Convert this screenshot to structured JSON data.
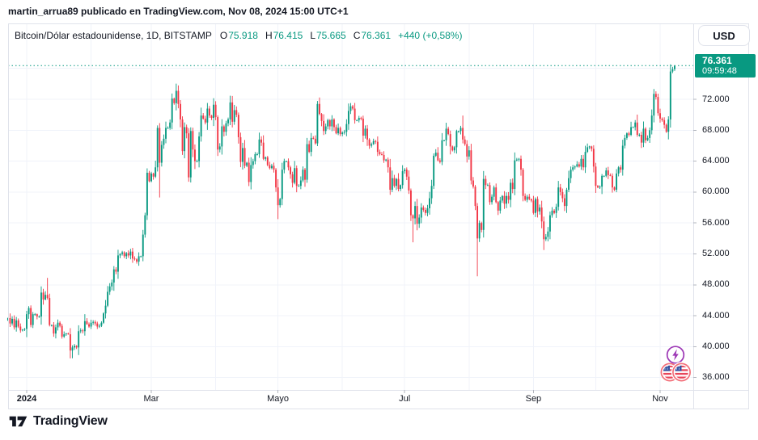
{
  "attribution": {
    "text": "martin_arrua89 publicado en TradingView.com, Nov 08, 2024 15:00 UTC+1"
  },
  "header": {
    "title": "Bitcoin/Dólar estadounidense, 1D, BITSTAMP",
    "ohlc": [
      {
        "label": "O",
        "value": "75.918"
      },
      {
        "label": "H",
        "value": "76.415"
      },
      {
        "label": "L",
        "value": "75.665"
      },
      {
        "label": "C",
        "value": "76.361"
      }
    ],
    "change": "+440 (+0,58%)",
    "currency_button": "USD"
  },
  "price_scale": {
    "last_price": "76.361",
    "countdown": "09:59:48"
  },
  "footer": {
    "brand": "TradingView"
  },
  "reactions": {
    "boost": "lightning-bolt",
    "flags": "us-flag-pair"
  },
  "chart_data": {
    "type": "candlestick",
    "symbol": "Bitcoin/Dólar estadounidense",
    "interval": "1D",
    "exchange": "BITSTAMP",
    "unit": "thousands of USD",
    "date_range": {
      "start": "2023-12-23",
      "end": "2024-11-08"
    },
    "ylim_k": [
      34.4,
      81.82
    ],
    "y_axis": {
      "grid_extra_k": [
        76
      ],
      "ticks": [
        {
          "k": 72,
          "label": "72.000"
        },
        {
          "k": 68,
          "label": "68.000"
        },
        {
          "k": 64,
          "label": "64.000"
        },
        {
          "k": 60,
          "label": "60.000"
        },
        {
          "k": 56,
          "label": "56.000"
        },
        {
          "k": 52,
          "label": "52.000"
        },
        {
          "k": 48,
          "label": "48.000"
        },
        {
          "k": 44,
          "label": "44.000"
        },
        {
          "k": 40,
          "label": "40.000"
        },
        {
          "k": 36,
          "label": "36.000"
        }
      ]
    },
    "x_axis": {
      "labels": [
        {
          "day": 9,
          "text": "2024",
          "bold": true
        },
        {
          "day": 69,
          "text": "Mar"
        },
        {
          "day": 130,
          "text": "Mayo"
        },
        {
          "day": 191,
          "text": "Jul"
        },
        {
          "day": 253,
          "text": "Sep"
        },
        {
          "day": 314,
          "text": "Nov"
        }
      ],
      "month_grid_days": [
        9,
        40,
        69,
        100,
        130,
        161,
        191,
        222,
        253,
        283,
        314
      ]
    },
    "first_open_k": 43.4,
    "closes_k": [
      43.7,
      43.0,
      43.6,
      42.5,
      43.4,
      42.6,
      42.1,
      42.2,
      42.3,
      44.2,
      45.0,
      42.8,
      44.2,
      44.2,
      43.9,
      43.9,
      47.0,
      46.1,
      46.7,
      46.3,
      42.8,
      42.8,
      41.7,
      42.5,
      43.1,
      42.7,
      41.3,
      41.6,
      41.7,
      41.6,
      39.5,
      39.9,
      40.1,
      39.9,
      42.0,
      42.1,
      42.0,
      43.3,
      42.9,
      42.6,
      43.1,
      43.2,
      43.0,
      42.6,
      42.7,
      43.1,
      44.3,
      45.3,
      47.1,
      47.8,
      48.3,
      50.0,
      49.7,
      51.8,
      52.0,
      52.2,
      51.7,
      52.1,
      51.8,
      52.3,
      51.4,
      51.3,
      51.0,
      51.7,
      51.7,
      54.5,
      57.0,
      62.5,
      61.4,
      62.4,
      62.0,
      63.2,
      68.3,
      63.8,
      66.1,
      66.9,
      68.3,
      68.3,
      69.0,
      72.1,
      71.5,
      73.1,
      71.4,
      69.4,
      65.3,
      68.4,
      67.6,
      61.9,
      67.9,
      65.5,
      64.0,
      64.0,
      67.2,
      69.9,
      69.5,
      69.0,
      70.8,
      69.9,
      69.6,
      71.3,
      69.7,
      65.5,
      65.9,
      68.5,
      67.8,
      68.9,
      69.4,
      71.6,
      69.1,
      70.6,
      70.0,
      67.1,
      63.9,
      65.7,
      63.4,
      63.8,
      61.3,
      63.5,
      64.0,
      64.9,
      64.9,
      66.8,
      66.4,
      64.3,
      64.5,
      63.5,
      63.1,
      63.4,
      62.9,
      60.6,
      58.3,
      59.1,
      62.9,
      64.0,
      64.0,
      63.2,
      62.3,
      61.2,
      63.1,
      60.8,
      60.8,
      61.5,
      62.9,
      61.6,
      66.2,
      65.2,
      67.0,
      66.9,
      66.3,
      71.4,
      70.1,
      69.2,
      67.9,
      68.5,
      69.3,
      68.5,
      69.4,
      68.4,
      67.6,
      68.3,
      67.5,
      67.7,
      67.8,
      68.8,
      70.5,
      71.1,
      70.8,
      69.3,
      69.3,
      69.6,
      69.5,
      67.3,
      68.2,
      66.8,
      66.0,
      66.2,
      66.6,
      66.5,
      65.2,
      64.9,
      64.8,
      64.1,
      64.2,
      63.2,
      60.3,
      61.8,
      60.8,
      61.7,
      60.4,
      60.9,
      62.7,
      62.9,
      62.0,
      60.2,
      57.0,
      56.6,
      58.2,
      55.9,
      56.7,
      58.0,
      57.7,
      57.3,
      57.9,
      59.2,
      60.8,
      64.7,
      65.1,
      64.1,
      63.9,
      66.7,
      66.7,
      68.2,
      67.5,
      65.9,
      65.4,
      65.8,
      67.9,
      67.9,
      68.3,
      66.8,
      66.2,
      64.6,
      65.4,
      61.5,
      60.7,
      58.2,
      54.0,
      56.0,
      55.1,
      61.7,
      60.9,
      60.9,
      58.7,
      59.4,
      60.6,
      58.7,
      57.6,
      58.9,
      59.5,
      58.5,
      59.5,
      59.0,
      61.2,
      60.4,
      64.1,
      64.2,
      64.3,
      62.9,
      59.5,
      59.0,
      59.4,
      59.1,
      58.9,
      57.3,
      59.1,
      57.5,
      58.0,
      56.2,
      53.9,
      54.2,
      54.9,
      57.0,
      57.6,
      57.3,
      58.1,
      60.6,
      60.0,
      59.2,
      58.2,
      60.3,
      61.8,
      62.9,
      63.2,
      63.3,
      63.6,
      63.3,
      64.3,
      63.2,
      65.2,
      65.8,
      65.9,
      65.6,
      63.3,
      60.8,
      60.6,
      60.7,
      62.1,
      62.1,
      62.8,
      62.2,
      62.1,
      60.6,
      60.3,
      62.4,
      63.2,
      62.9,
      66.0,
      67.0,
      67.6,
      67.4,
      68.4,
      68.4,
      69.0,
      67.4,
      67.4,
      66.4,
      68.2,
      66.7,
      67.0,
      68.0,
      69.9,
      72.7,
      72.3,
      70.2,
      69.5,
      69.3,
      68.7,
      67.8,
      69.4,
      75.6,
      75.9,
      76.361
    ],
    "wick_overrides_k": [
      {
        "i": 19,
        "high": 48.9
      },
      {
        "i": 31,
        "low": 38.5
      },
      {
        "i": 73,
        "low": 59.3
      },
      {
        "i": 82,
        "high": 73.8
      },
      {
        "i": 130,
        "low": 56.5
      },
      {
        "i": 195,
        "low": 53.5
      },
      {
        "i": 219,
        "high": 69.9
      },
      {
        "i": 226,
        "low": 49.1
      },
      {
        "i": 258,
        "low": 52.5
      },
      {
        "i": 320,
        "high": 76.2
      },
      {
        "i": 321,
        "high": 76.415,
        "low": 75.665
      }
    ],
    "last": {
      "open_k": 75.918,
      "high_k": 76.415,
      "low_k": 75.665,
      "close_k": 76.361
    },
    "colors": {
      "up": "#089981",
      "down": "#F23645",
      "grid": "#F0F3FA",
      "border": "#E0E3EB",
      "price_line": "#089981",
      "tick": "#B2B5BE"
    }
  }
}
